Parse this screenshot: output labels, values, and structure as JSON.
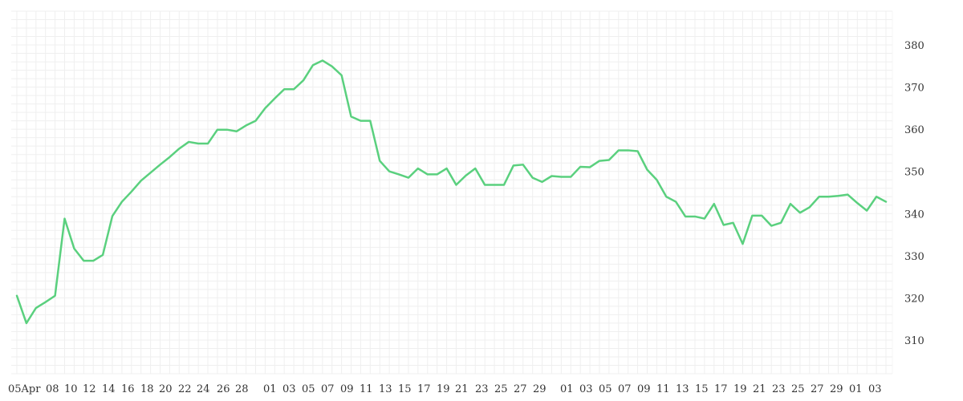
{
  "chart_data": {
    "type": "line",
    "title": "",
    "xlabel": "",
    "ylabel": "",
    "ylim": [
      302,
      388
    ],
    "y_ticks": [
      310,
      320,
      330,
      340,
      350,
      360,
      370,
      380
    ],
    "y_axis_position": "right",
    "grid": true,
    "legend": "none",
    "x_tick_labels": [
      "05Apr",
      "08",
      "10",
      "12",
      "14",
      "16",
      "18",
      "20",
      "22",
      "24",
      "26",
      "28",
      "01",
      "03",
      "05",
      "07",
      "09",
      "11",
      "13",
      "15",
      "17",
      "19",
      "21",
      "23",
      "25",
      "27",
      "29",
      "01",
      "03",
      "05",
      "07",
      "09",
      "11",
      "13",
      "15",
      "17",
      "19",
      "21",
      "23",
      "25",
      "27",
      "29",
      "01",
      "03"
    ],
    "series": [
      {
        "color": "#5ad07e",
        "values": [
          320.5,
          314.0,
          317.6,
          319.0,
          320.5,
          338.8,
          331.7,
          328.8,
          328.8,
          330.2,
          339.4,
          342.8,
          345.2,
          347.8,
          349.7,
          351.6,
          353.4,
          355.4,
          357.0,
          356.6,
          356.6,
          359.9,
          359.9,
          359.5,
          360.9,
          362.0,
          365.0,
          367.3,
          369.5,
          369.5,
          371.6,
          375.2,
          376.3,
          374.9,
          372.8,
          363.0,
          362.0,
          362.0,
          352.5,
          350.0,
          349.3,
          348.5,
          350.7,
          349.3,
          349.3,
          350.7,
          346.8,
          349.0,
          350.7,
          346.8,
          346.8,
          346.8,
          351.4,
          351.6,
          348.5,
          347.5,
          348.9,
          348.7,
          348.7,
          351.1,
          351.0,
          352.5,
          352.7,
          355.0,
          355.0,
          354.8,
          350.4,
          348.0,
          344.0,
          342.8,
          339.3,
          339.3,
          338.8,
          342.3,
          337.3,
          337.8,
          332.8,
          339.5,
          339.5,
          337.1,
          337.8,
          342.3,
          340.2,
          341.5,
          344.0,
          344.0,
          344.2,
          344.5,
          342.5,
          340.7,
          344.0,
          342.8
        ]
      }
    ]
  }
}
